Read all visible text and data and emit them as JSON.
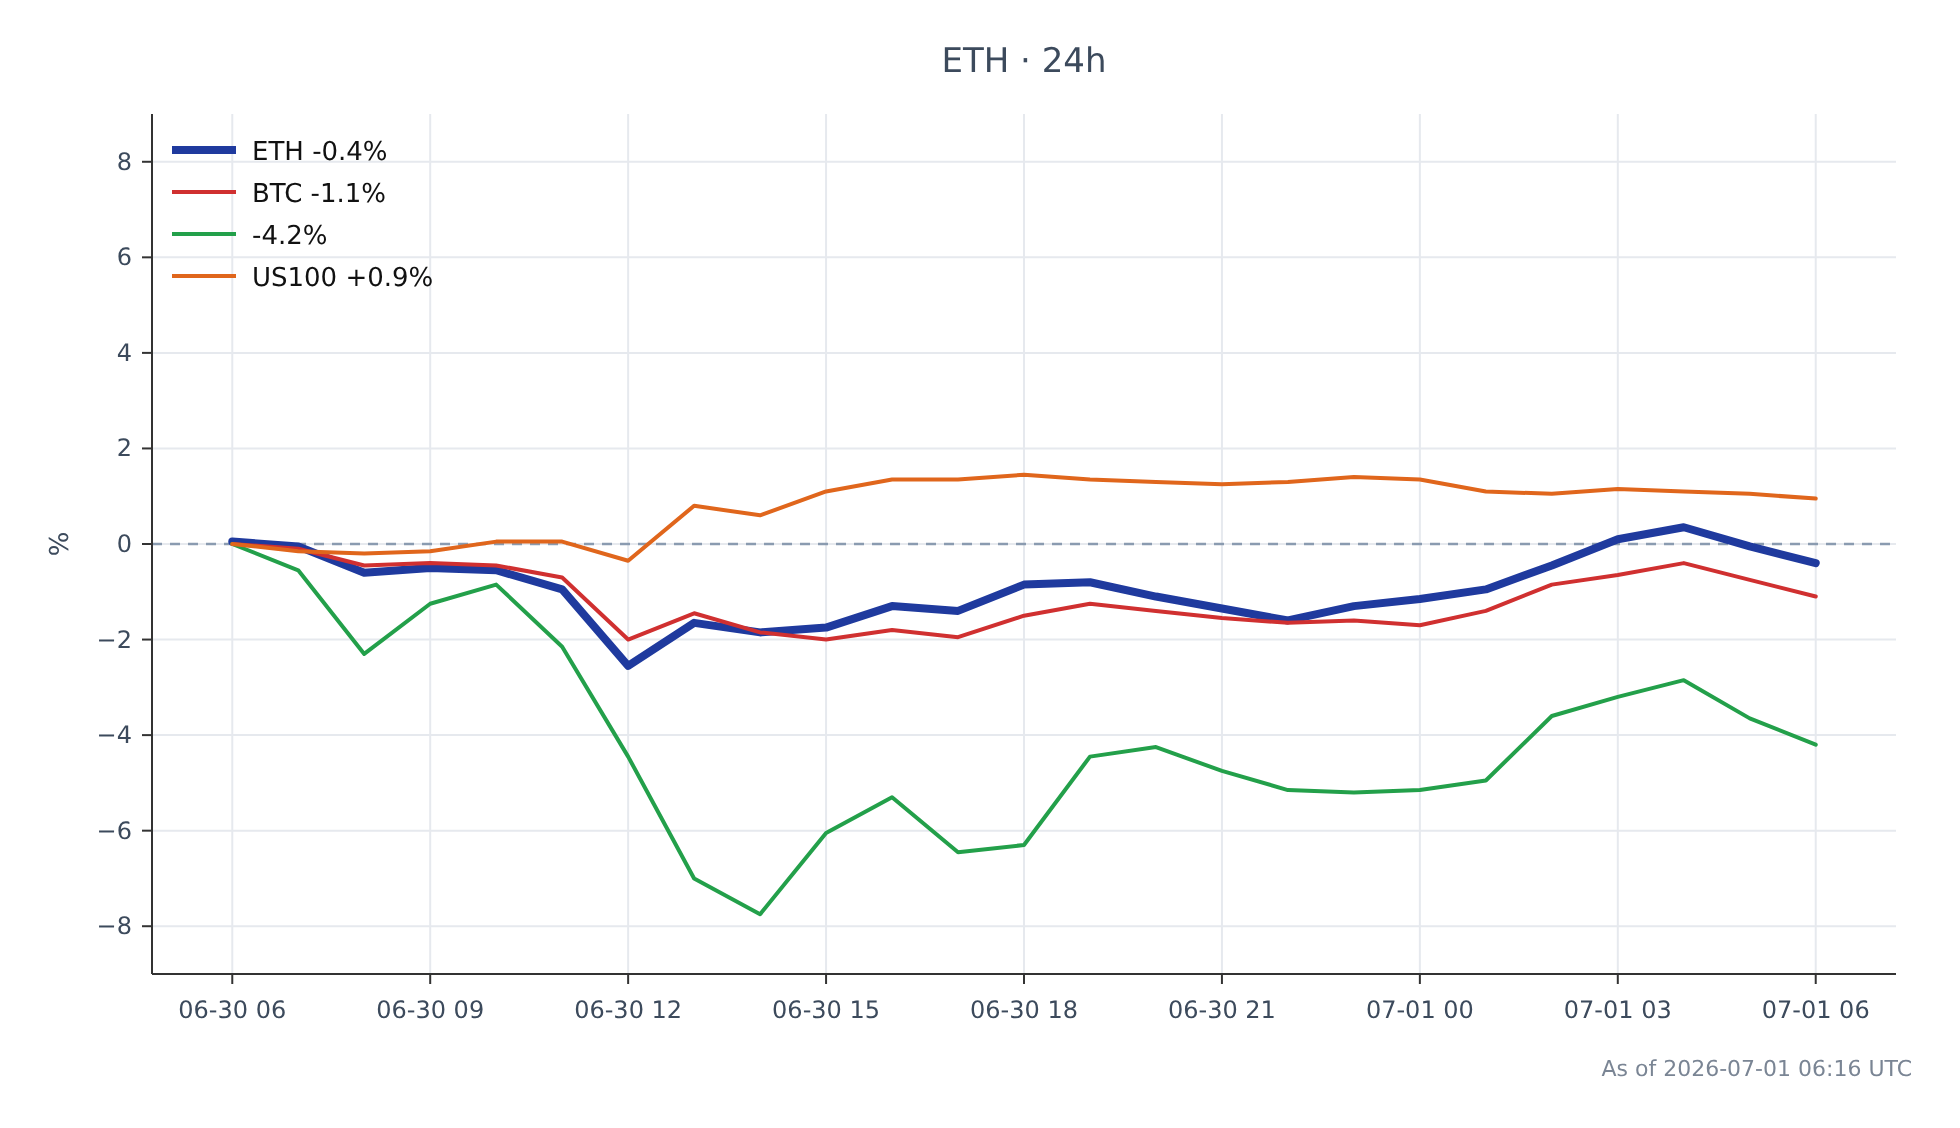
{
  "chart_data": {
    "type": "line",
    "title": "ETH · 24h",
    "ylabel": "%",
    "x": [
      "2026-06-30T06:00",
      "2026-06-30T07:00",
      "2026-06-30T08:00",
      "2026-06-30T09:00",
      "2026-06-30T10:00",
      "2026-06-30T11:00",
      "2026-06-30T12:00",
      "2026-06-30T13:00",
      "2026-06-30T14:00",
      "2026-06-30T15:00",
      "2026-06-30T16:00",
      "2026-06-30T17:00",
      "2026-06-30T18:00",
      "2026-06-30T19:00",
      "2026-06-30T20:00",
      "2026-06-30T21:00",
      "2026-06-30T22:00",
      "2026-06-30T23:00",
      "2026-07-01T00:00",
      "2026-07-01T01:00",
      "2026-07-01T02:00",
      "2026-07-01T03:00",
      "2026-07-01T04:00",
      "2026-07-01T05:00",
      "2026-07-01T06:00"
    ],
    "series": [
      {
        "name": "ETH -0.4%",
        "color": "#1f3a9e",
        "values": [
          0.05,
          -0.05,
          -0.6,
          -0.5,
          -0.55,
          -0.95,
          -2.55,
          -1.65,
          -1.85,
          -1.75,
          -1.3,
          -1.4,
          -0.85,
          -0.8,
          -1.1,
          -1.35,
          -1.6,
          -1.3,
          -1.15,
          -0.95,
          -0.45,
          0.1,
          0.35,
          -0.05,
          -0.4
        ]
      },
      {
        "name": "BTC -1.1%",
        "color": "#d03030",
        "values": [
          0,
          -0.1,
          -0.45,
          -0.4,
          -0.45,
          -0.7,
          -2.0,
          -1.45,
          -1.85,
          -2.0,
          -1.8,
          -1.95,
          -1.5,
          -1.25,
          -1.4,
          -1.55,
          -1.65,
          -1.6,
          -1.7,
          -1.4,
          -0.85,
          -0.65,
          -0.4,
          -0.75,
          -1.1
        ]
      },
      {
        "name": "-4.2%",
        "color": "#23a04a",
        "values": [
          0,
          -0.55,
          -2.3,
          -1.25,
          -0.85,
          -2.15,
          -4.45,
          -7.0,
          -7.75,
          -6.05,
          -5.3,
          -6.45,
          -6.3,
          -4.45,
          -4.25,
          -4.75,
          -5.15,
          -5.2,
          -5.15,
          -4.95,
          -3.6,
          -3.2,
          -2.85,
          -3.65,
          -4.2
        ]
      },
      {
        "name": "US100 +0.9%",
        "color": "#e0661c",
        "values": [
          0,
          -0.15,
          -0.2,
          -0.15,
          0.05,
          0.05,
          -0.35,
          0.8,
          0.6,
          1.1,
          1.35,
          1.35,
          1.45,
          1.35,
          1.3,
          1.25,
          1.3,
          1.4,
          1.35,
          1.1,
          1.05,
          1.15,
          1.1,
          1.05,
          0.95
        ]
      }
    ],
    "xlim": [
      "2026-06-30T04:47",
      "2026-07-01T07:13"
    ],
    "xticks": [
      {
        "value": "2026-06-30T06:00",
        "label": "06-30 06"
      },
      {
        "value": "2026-06-30T09:00",
        "label": "06-30 09"
      },
      {
        "value": "2026-06-30T12:00",
        "label": "06-30 12"
      },
      {
        "value": "2026-06-30T15:00",
        "label": "06-30 15"
      },
      {
        "value": "2026-06-30T18:00",
        "label": "06-30 18"
      },
      {
        "value": "2026-06-30T21:00",
        "label": "06-30 21"
      },
      {
        "value": "2026-07-01T00:00",
        "label": "07-01 00"
      },
      {
        "value": "2026-07-01T03:00",
        "label": "07-01 03"
      },
      {
        "value": "2026-07-01T06:00",
        "label": "07-01 06"
      }
    ],
    "ylim": [
      -9,
      9
    ],
    "yticks": [
      {
        "value": -8,
        "label": "−8"
      },
      {
        "value": -6,
        "label": "−6"
      },
      {
        "value": -4,
        "label": "−4"
      },
      {
        "value": -2,
        "label": "−2"
      },
      0,
      2,
      4,
      6,
      8
    ],
    "ref_lines": [
      {
        "axis": "y",
        "value": 0,
        "color": "#8a9bb0",
        "line_style": "dashed"
      }
    ],
    "grid": true,
    "legend": "top left",
    "line_style": "solid",
    "annotations": [
      "As of 2026-07-01 06:16 UTC"
    ]
  }
}
